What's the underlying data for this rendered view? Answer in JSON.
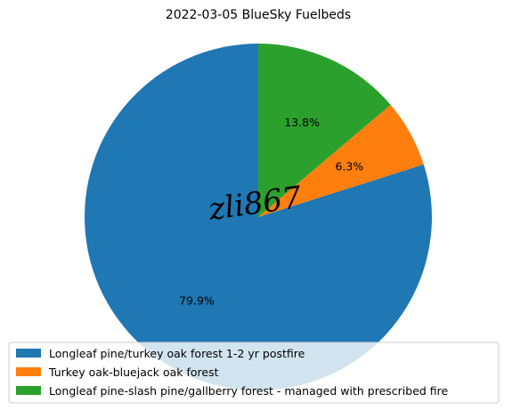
{
  "chart_data": {
    "type": "pie",
    "title": "2022-03-05 BlueSky Fuelbeds",
    "slices": [
      {
        "label": "Longleaf pine/turkey oak forest 1-2 yr postfire",
        "value": 79.9,
        "pct_label": "79.9%",
        "color": "#1f77b4"
      },
      {
        "label": "Turkey oak-bluejack oak forest",
        "value": 6.3,
        "pct_label": "6.3%",
        "color": "#ff7f0e"
      },
      {
        "label": "Longleaf pine-slash pine/gallberry forest - managed with prescribed fire",
        "value": 13.8,
        "pct_label": "13.8%",
        "color": "#2ca02c"
      }
    ],
    "start_angle_deg": 90,
    "direction": "counterclockwise",
    "legend_position": "bottom"
  },
  "watermark": "zli867"
}
